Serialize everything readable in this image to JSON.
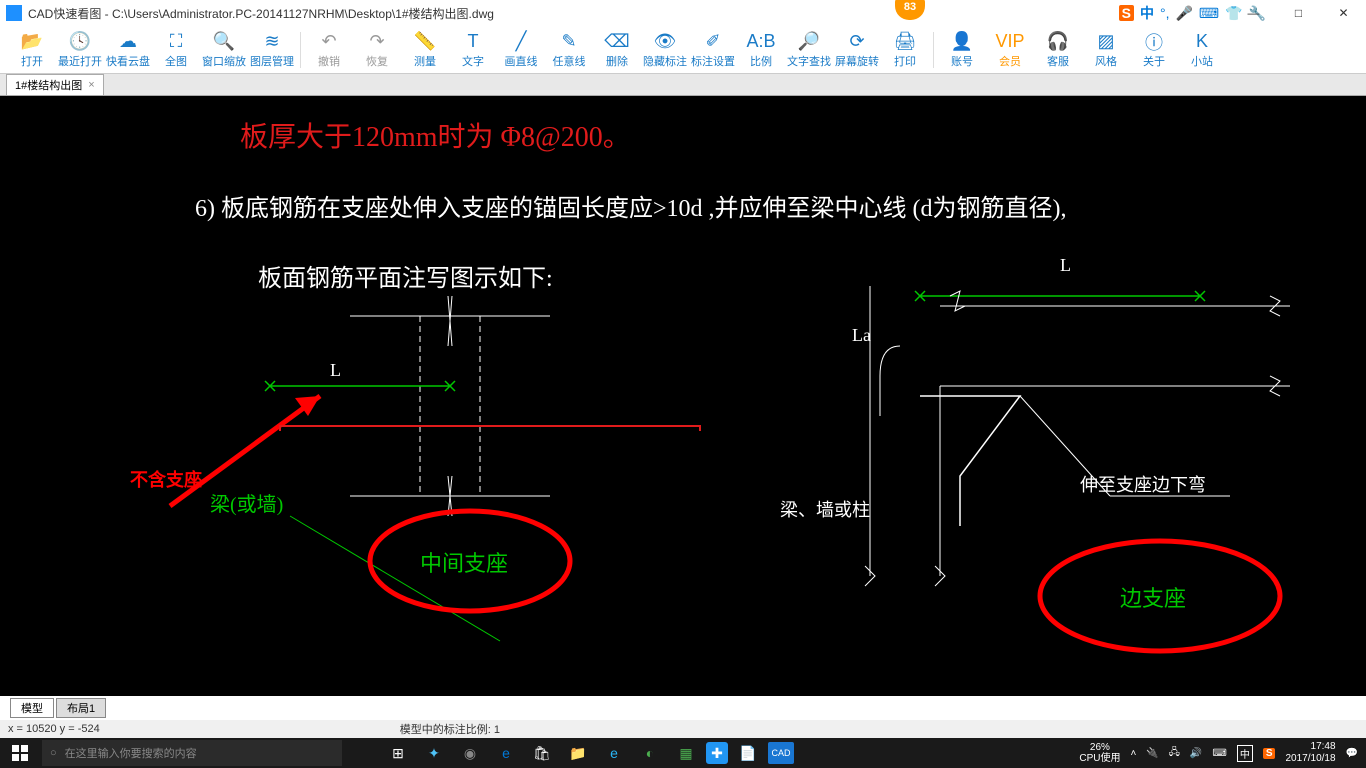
{
  "window": {
    "title": "CAD快速看图 - C:\\Users\\Administrator.PC-20141127NRHM\\Desktop\\1#楼结构出图.dwg",
    "badge": "83"
  },
  "title_icons": {
    "sogou_s": "S",
    "zhong": "中",
    "color_s": "#ff6600",
    "color_zhong": "#0078d7"
  },
  "win_controls": {
    "min": "—",
    "max": "□",
    "close": "✕"
  },
  "toolbar": [
    {
      "label": "打开",
      "icon": "📂",
      "color": "blue"
    },
    {
      "label": "最近打开",
      "icon": "🕓",
      "color": "blue"
    },
    {
      "label": "快看云盘",
      "icon": "☁",
      "color": "blue"
    },
    {
      "label": "全图",
      "icon": "⛶",
      "color": "blue"
    },
    {
      "label": "窗口缩放",
      "icon": "🔍",
      "color": "blue"
    },
    {
      "label": "图层管理",
      "icon": "≋",
      "color": "blue"
    },
    {
      "label": "撤销",
      "icon": "↶",
      "color": "gray"
    },
    {
      "label": "恢复",
      "icon": "↷",
      "color": "gray"
    },
    {
      "label": "测量",
      "icon": "📏",
      "color": "blue"
    },
    {
      "label": "文字",
      "icon": "T",
      "color": "blue"
    },
    {
      "label": "画直线",
      "icon": "╱",
      "color": "blue"
    },
    {
      "label": "任意线",
      "icon": "✎",
      "color": "blue"
    },
    {
      "label": "删除",
      "icon": "⌫",
      "color": "blue"
    },
    {
      "label": "隐藏标注",
      "icon": "👁",
      "color": "blue"
    },
    {
      "label": "标注设置",
      "icon": "✐",
      "color": "blue"
    },
    {
      "label": "比例",
      "icon": "A:B",
      "color": "blue"
    },
    {
      "label": "文字查找",
      "icon": "🔎",
      "color": "blue"
    },
    {
      "label": "屏幕旋转",
      "icon": "⟳",
      "color": "blue"
    },
    {
      "label": "打印",
      "icon": "🖨",
      "color": "blue"
    },
    {
      "label": "账号",
      "icon": "👤",
      "color": "blue"
    },
    {
      "label": "会员",
      "icon": "VIP",
      "color": "orange"
    },
    {
      "label": "客服",
      "icon": "🎧",
      "color": "blue"
    },
    {
      "label": "风格",
      "icon": "▨",
      "color": "blue"
    },
    {
      "label": "关于",
      "icon": "ⓘ",
      "color": "blue"
    },
    {
      "label": "小站",
      "icon": "K",
      "color": "blue"
    }
  ],
  "tab": {
    "name": "1#楼结构出图",
    "close": "×"
  },
  "drawing": {
    "text_red": "板厚大于120mm时为 Φ8@200。",
    "text_white1": "6) 板底钢筋在支座处伸入支座的锚固长度应>10d  ,并应伸至梁中心线 (d为钢筋直径),",
    "text_white2": "板面钢筋平面注写图示如下:",
    "label_L1": "L",
    "label_L2": "L",
    "label_La": "La",
    "annotation_red": "不含支座",
    "label_beam1": "梁(或墙)",
    "label_mid": "中间支座",
    "label_beam2": "梁、墙或柱",
    "label_bend": "伸至支座边下弯",
    "label_edge": "边支座",
    "colors": {
      "red": "#e01b1b",
      "green": "#00c800",
      "white": "#ffffff",
      "arrow_red": "#ff0000",
      "circle_red": "#ff0000"
    }
  },
  "bottom_tabs": {
    "model": "模型",
    "layout": "布局1"
  },
  "statusbar": {
    "coords": "x = 10520  y = -524",
    "scale": "模型中的标注比例: 1"
  },
  "taskbar": {
    "search_placeholder": "在这里输入你要搜索的内容",
    "cpu": "26%\nCPU使用",
    "ime": "中",
    "sogou": "S",
    "time": "17:48",
    "date": "2017/10/18"
  }
}
